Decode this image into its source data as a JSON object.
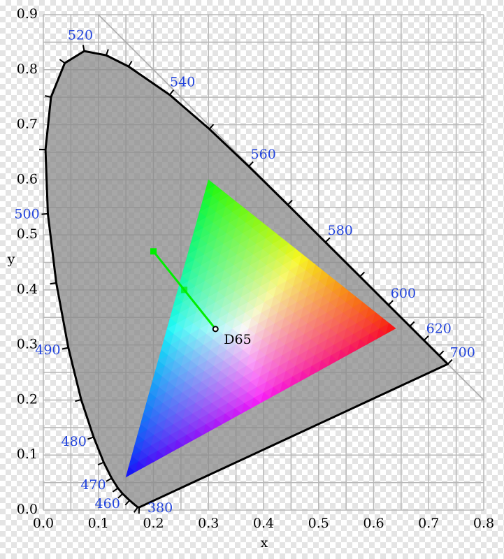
{
  "chart_data": {
    "type": "chromaticity",
    "xlabel": "x",
    "ylabel": "y",
    "xlim": [
      0,
      0.8
    ],
    "ylim": [
      0,
      0.9
    ],
    "xticks": [
      {
        "value": 0,
        "label": "0.0"
      },
      0.1,
      0.2,
      0.3,
      0.4,
      0.5,
      0.6,
      0.7,
      0.8
    ],
    "yticks": [
      {
        "value": 0,
        "label": "0.0"
      },
      0.1,
      0.2,
      0.3,
      0.4,
      0.5,
      0.6,
      0.7,
      0.8,
      0.9
    ],
    "xminorticks": [
      0.05,
      0.15,
      0.25,
      0.35,
      0.45,
      0.55,
      0.65,
      0.75
    ],
    "yminorticks": [
      0.05,
      0.15,
      0.25,
      0.35,
      0.45,
      0.55,
      0.65,
      0.75,
      0.85
    ],
    "grid": true,
    "locus": {
      "labels": [
        "380",
        null,
        null,
        "460",
        null,
        "470",
        null,
        "480",
        null,
        "490",
        null,
        "500",
        null,
        null,
        null,
        "520",
        null,
        null,
        "540",
        null,
        "560",
        null,
        "580",
        null,
        "600",
        null,
        "620",
        null,
        "700"
      ],
      "x": [
        0.1741,
        0.1714,
        0.1566,
        0.144,
        0.1355,
        0.1241,
        0.1096,
        0.0913,
        0.0687,
        0.0454,
        0.0235,
        0.0082,
        0.0039,
        0.0139,
        0.0389,
        0.0743,
        0.1142,
        0.1547,
        0.2296,
        0.3016,
        0.3731,
        0.4441,
        0.5125,
        0.5752,
        0.627,
        0.6658,
        0.6915,
        0.719,
        0.7347
      ],
      "y": [
        0.005,
        0.0051,
        0.0177,
        0.0297,
        0.0399,
        0.0578,
        0.0868,
        0.1327,
        0.2007,
        0.295,
        0.4127,
        0.5384,
        0.6548,
        0.7502,
        0.812,
        0.8338,
        0.8262,
        0.8059,
        0.7543,
        0.6923,
        0.6245,
        0.5547,
        0.4866,
        0.4242,
        0.3725,
        0.334,
        0.3083,
        0.2809,
        0.2653
      ],
      "fill": "#8a8a8a",
      "color": "#000000"
    },
    "gamut": {
      "x": [
        0.64,
        0.3,
        0.15
      ],
      "y": [
        0.33,
        0.6,
        0.06
      ]
    },
    "white_point": {
      "label": "D65",
      "x": 0.3127,
      "y": 0.329
    },
    "line": {
      "x": [
        0.3127,
        0.256,
        0.2
      ],
      "y": [
        0.329,
        0.4,
        0.47
      ],
      "color": "#00ee00"
    }
  }
}
